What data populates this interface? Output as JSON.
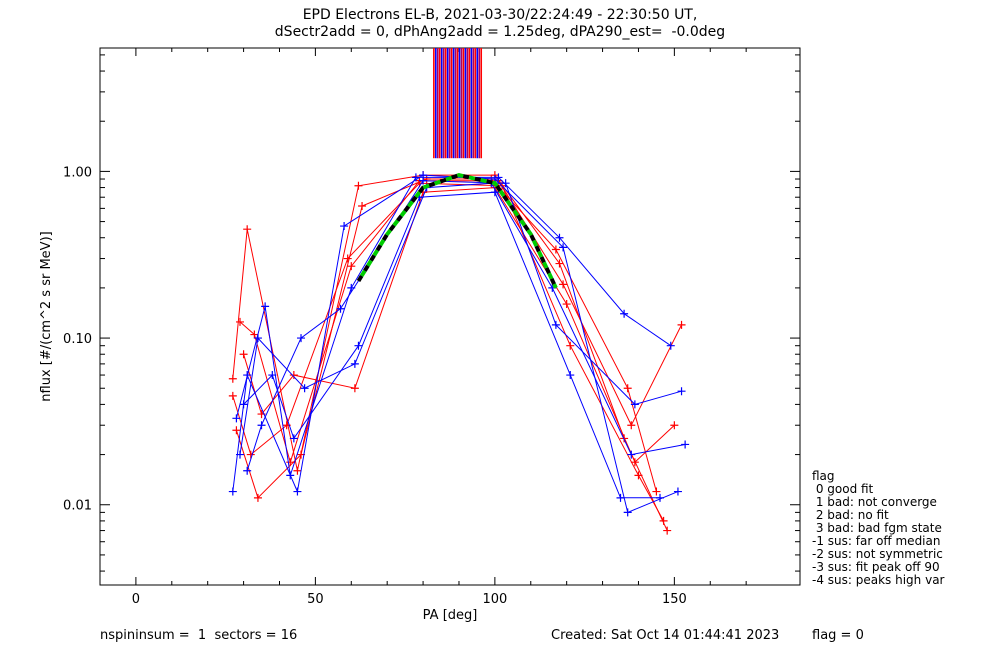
{
  "chart_data": {
    "type": "scatter",
    "title_line1": "EPD Electrons EL-B, 2021-03-30/22:24:49 - 22:30:50 UT,",
    "title_line2": "dSectr2add = 0, dPhAng2add = 1.25deg, dPA290_est=  -0.0deg",
    "xlabel": "PA [deg]",
    "ylabel": "nflux [#/(cm^2 s sr MeV)]",
    "xlim": [
      -10,
      185
    ],
    "ylim": [
      0.0033,
      5.5
    ],
    "yscale": "log",
    "xticks": [
      0,
      50,
      100,
      150
    ],
    "xtick_labels": [
      "0",
      "50",
      "100",
      "150"
    ],
    "yticks": [
      0.01,
      0.1,
      1.0
    ],
    "ytick_labels": [
      "0.01",
      "0.10",
      "1.00"
    ],
    "colors": {
      "series_a": "#ff0000",
      "series_b": "#0000ff",
      "fit": "#00cc00",
      "fit_dark": "#000000"
    },
    "series": [
      {
        "color": "red",
        "points": [
          [
            27,
            0.057
          ],
          [
            31,
            0.45
          ],
          [
            45,
            0.016
          ],
          [
            62,
            0.82
          ],
          [
            80,
            0.95
          ],
          [
            100,
            0.95
          ],
          [
            118,
            0.28
          ],
          [
            136,
            0.025
          ],
          [
            148,
            0.007
          ]
        ]
      },
      {
        "color": "red",
        "points": [
          [
            29,
            0.125
          ],
          [
            33,
            0.105
          ],
          [
            43,
            0.018
          ],
          [
            60,
            0.27
          ],
          [
            79,
            0.88
          ],
          [
            101,
            0.88
          ],
          [
            119,
            0.21
          ],
          [
            138,
            0.03
          ],
          [
            152,
            0.12
          ]
        ]
      },
      {
        "color": "red",
        "points": [
          [
            28,
            0.028
          ],
          [
            34,
            0.011
          ],
          [
            46,
            0.02
          ],
          [
            63,
            0.62
          ],
          [
            81,
            0.9
          ],
          [
            99,
            0.9
          ],
          [
            117,
            0.34
          ],
          [
            137,
            0.05
          ],
          [
            145,
            0.012
          ]
        ]
      },
      {
        "color": "red",
        "points": [
          [
            30,
            0.08
          ],
          [
            35,
            0.035
          ],
          [
            44,
            0.06
          ],
          [
            61,
            0.05
          ],
          [
            80,
            0.75
          ],
          [
            100,
            0.8
          ],
          [
            120,
            0.16
          ],
          [
            139,
            0.018
          ],
          [
            150,
            0.03
          ]
        ]
      },
      {
        "color": "red",
        "points": [
          [
            27,
            0.045
          ],
          [
            32,
            0.02
          ],
          [
            42,
            0.03
          ],
          [
            59,
            0.3
          ],
          [
            79,
            0.85
          ],
          [
            102,
            0.82
          ],
          [
            121,
            0.09
          ],
          [
            140,
            0.015
          ],
          [
            147,
            0.008
          ]
        ]
      },
      {
        "color": "blue",
        "points": [
          [
            27,
            0.012
          ],
          [
            31,
            0.06
          ],
          [
            45,
            0.012
          ],
          [
            58,
            0.47
          ],
          [
            80,
            0.95
          ],
          [
            100,
            0.9
          ],
          [
            119,
            0.35
          ],
          [
            137,
            0.009
          ],
          [
            151,
            0.012
          ]
        ]
      },
      {
        "color": "blue",
        "points": [
          [
            28,
            0.033
          ],
          [
            36,
            0.155
          ],
          [
            43,
            0.015
          ],
          [
            60,
            0.2
          ],
          [
            78,
            0.92
          ],
          [
            101,
            0.92
          ],
          [
            118,
            0.4
          ],
          [
            136,
            0.14
          ],
          [
            149,
            0.09
          ]
        ]
      },
      {
        "color": "blue",
        "points": [
          [
            29,
            0.02
          ],
          [
            34,
            0.1
          ],
          [
            47,
            0.05
          ],
          [
            61,
            0.07
          ],
          [
            81,
            0.8
          ],
          [
            99,
            0.85
          ],
          [
            116,
            0.2
          ],
          [
            138,
            0.02
          ],
          [
            153,
            0.023
          ]
        ]
      },
      {
        "color": "blue",
        "points": [
          [
            30,
            0.04
          ],
          [
            38,
            0.06
          ],
          [
            44,
            0.025
          ],
          [
            62,
            0.09
          ],
          [
            79,
            0.7
          ],
          [
            100,
            0.75
          ],
          [
            121,
            0.06
          ],
          [
            135,
            0.011
          ],
          [
            146,
            0.011
          ]
        ]
      },
      {
        "color": "blue",
        "points": [
          [
            31,
            0.016
          ],
          [
            35,
            0.03
          ],
          [
            46,
            0.1
          ],
          [
            57,
            0.15
          ],
          [
            80,
            0.88
          ],
          [
            103,
            0.85
          ],
          [
            117,
            0.12
          ],
          [
            139,
            0.04
          ],
          [
            152,
            0.048
          ]
        ]
      }
    ],
    "fit_points": [
      [
        62,
        0.22
      ],
      [
        70,
        0.42
      ],
      [
        80,
        0.8
      ],
      [
        90,
        0.95
      ],
      [
        100,
        0.85
      ],
      [
        110,
        0.42
      ],
      [
        117,
        0.2
      ]
    ],
    "legend_lines": [
      "flag",
      " 0 good fit",
      " 1 bad: not converge",
      " 2 bad: no fit",
      " 3 bad: bad fgm state",
      "-1 sus: far off median",
      "-2 sus: not symmetric",
      "-3 sus: fit peak off 90",
      "-4 sus: peaks high var"
    ]
  },
  "footer": {
    "left": "nspininsum =  1  sectors = 16",
    "created": "Created: Sat Oct 14 01:44:41 2023",
    "flag": "flag = 0"
  }
}
